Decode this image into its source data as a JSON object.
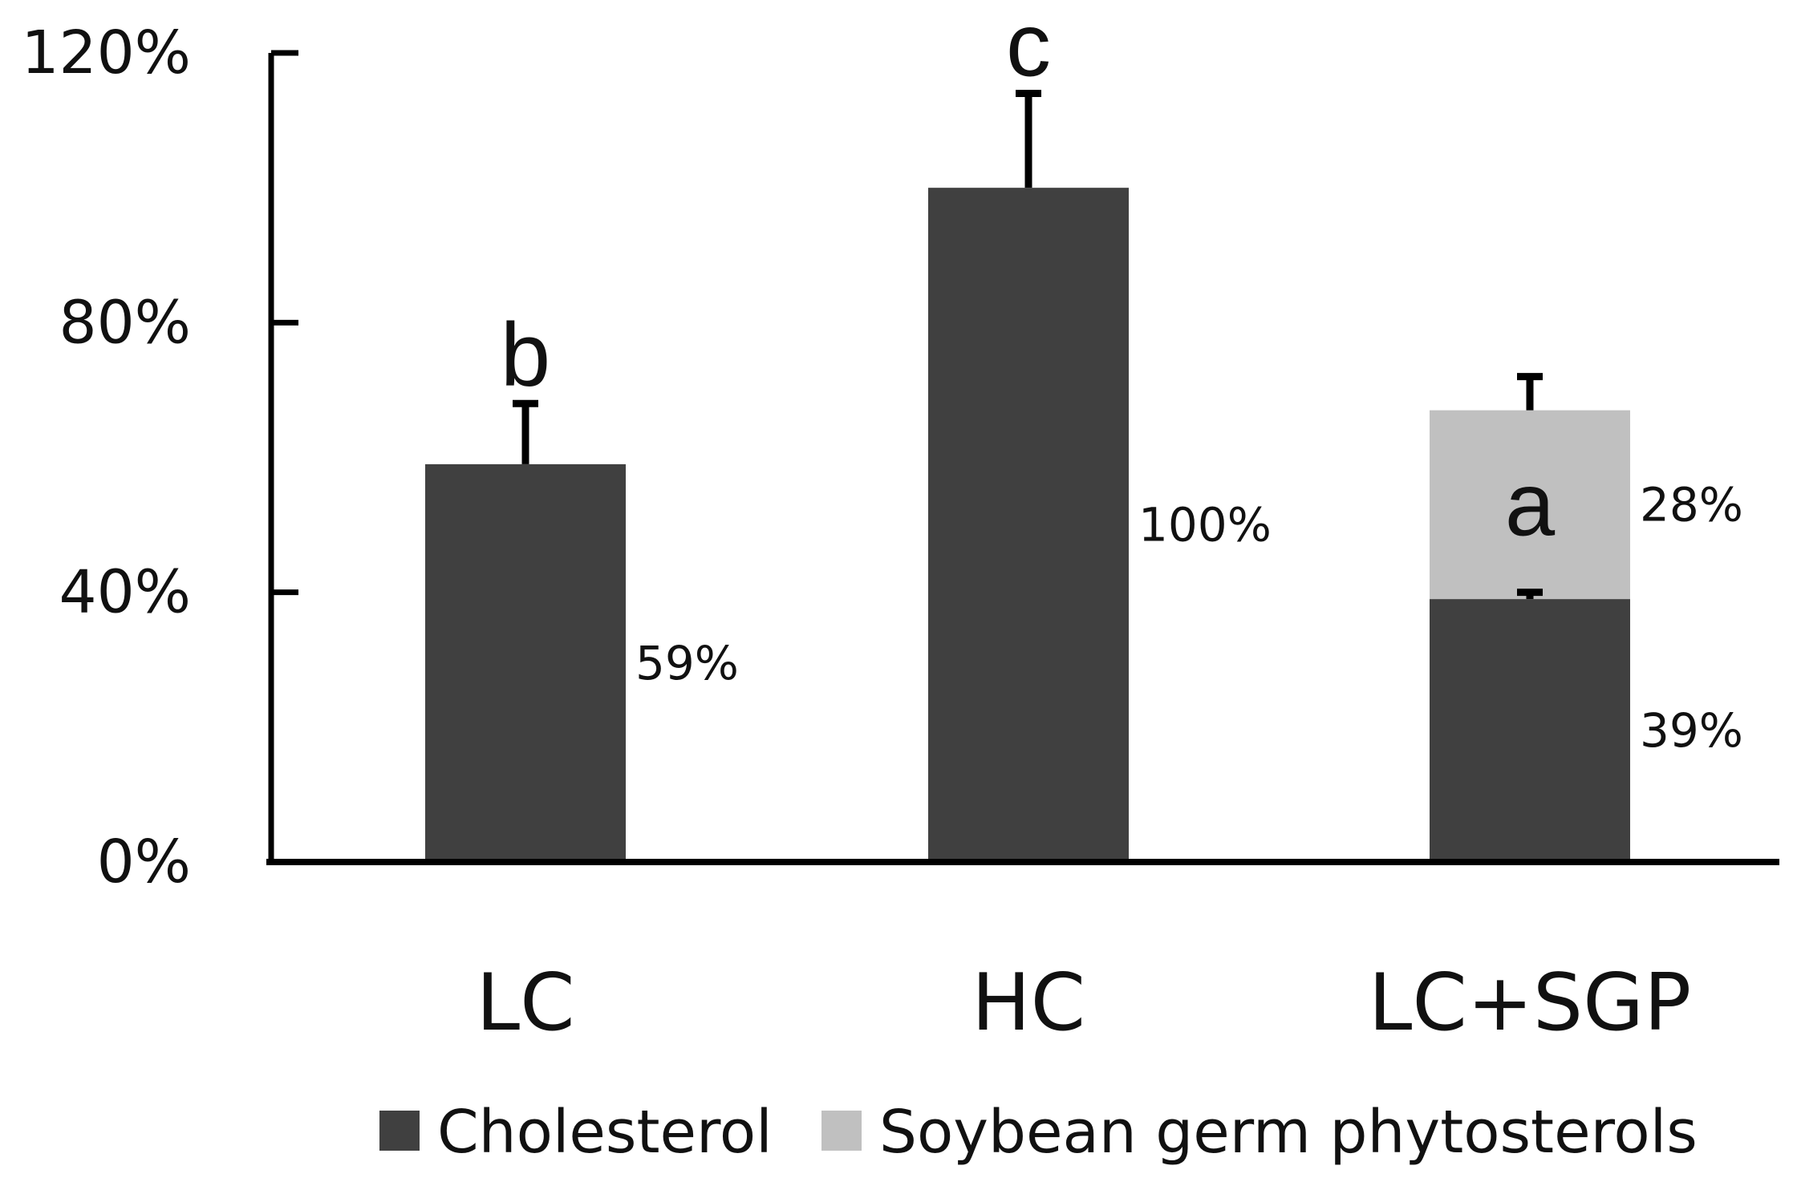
{
  "chart_data": {
    "type": "bar",
    "stacked": true,
    "title": "",
    "xlabel": "",
    "ylabel": "",
    "ylim": [
      0,
      120
    ],
    "yticks": [
      "0%",
      "40%",
      "80%",
      "120%"
    ],
    "ytick_values": [
      0,
      40,
      80,
      120
    ],
    "categories": [
      "LC",
      "HC",
      "LC+SGP"
    ],
    "series": [
      {
        "name": "Cholesterol",
        "color": "#404040",
        "values": [
          59,
          100,
          39
        ],
        "errors": [
          9,
          14,
          1
        ],
        "value_labels": [
          "59%",
          "100%",
          "39%"
        ]
      },
      {
        "name": "Soybean germ phytosterols",
        "color": "#c0c0c0",
        "values": [
          0,
          0,
          28
        ],
        "errors": [
          0,
          0,
          5
        ],
        "value_labels": [
          "",
          "",
          "28%"
        ]
      }
    ],
    "significance": [
      "b",
      "c",
      "a"
    ],
    "legend": {
      "position": "bottom",
      "entries": [
        "Cholesterol",
        "Soybean germ phytosterols"
      ]
    }
  }
}
